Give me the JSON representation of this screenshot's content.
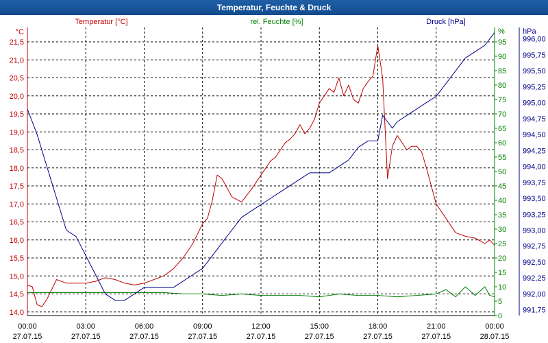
{
  "title": "Temperatur, Feuchte & Druck",
  "colors": {
    "temperature": "#c00000",
    "humidity": "#008000",
    "pressure": "#00008b",
    "grid": "#000000",
    "background": "#ffffff"
  },
  "chart_data": {
    "type": "line",
    "title": "Temperatur, Feuchte & Druck",
    "xlabel": "",
    "x_ticks": [
      {
        "time": "00:00",
        "date": "27.07.15"
      },
      {
        "time": "03:00",
        "date": "27.07.15"
      },
      {
        "time": "06:00",
        "date": "27.07.15"
      },
      {
        "time": "09:00",
        "date": "27.07.15"
      },
      {
        "time": "12:00",
        "date": "27.07.15"
      },
      {
        "time": "15:00",
        "date": "27.07.15"
      },
      {
        "time": "18:00",
        "date": "27.07.15"
      },
      {
        "time": "21:00",
        "date": "27.07.15"
      },
      {
        "time": "00:00",
        "date": "28.07.15"
      }
    ],
    "xlim": [
      0,
      24
    ],
    "axes": {
      "temperature": {
        "label": "Temperatur [°C]",
        "unit": "°C",
        "min": 13.9,
        "max": 21.9,
        "ticks": [
          "14,0",
          "14,5",
          "15,0",
          "15,5",
          "16,0",
          "16,5",
          "17,0",
          "17,5",
          "18,0",
          "18,5",
          "19,0",
          "19,5",
          "20,0",
          "20,5",
          "21,0",
          "21,5"
        ]
      },
      "humidity": {
        "label": "rel. Feuchte [%]",
        "unit": "%",
        "min": 0,
        "max": 100,
        "ticks": [
          "0",
          "5",
          "10",
          "15",
          "20",
          "25",
          "30",
          "35",
          "40",
          "45",
          "50",
          "55",
          "60",
          "65",
          "70",
          "75",
          "80",
          "85",
          "90",
          "95"
        ]
      },
      "pressure": {
        "label": "Druck [hPa]",
        "unit": "hPa",
        "min": 991.66,
        "max": 996.18,
        "ticks": [
          "991,75",
          "992,00",
          "992,25",
          "992,50",
          "992,75",
          "993,00",
          "993,25",
          "993,50",
          "993,75",
          "994,00",
          "994,25",
          "994,50",
          "994,75",
          "995,00",
          "995,25",
          "995,50",
          "995,75",
          "996,00"
        ]
      }
    },
    "series": [
      {
        "name": "Temperatur",
        "axis": "temperature",
        "x": [
          0,
          0.25,
          0.5,
          0.75,
          1,
          1.5,
          2,
          2.5,
          3,
          3.5,
          4,
          4.5,
          5,
          5.5,
          6,
          6.5,
          7,
          7.5,
          8,
          8.5,
          9,
          9.25,
          9.5,
          9.75,
          10,
          10.5,
          11,
          11.5,
          12,
          12.25,
          12.5,
          12.75,
          13,
          13.25,
          13.5,
          13.75,
          14,
          14.25,
          14.5,
          14.75,
          15,
          15.25,
          15.5,
          15.75,
          16,
          16.25,
          16.5,
          16.75,
          17,
          17.25,
          17.5,
          17.75,
          18,
          18.25,
          18.5,
          18.75,
          19,
          19.25,
          19.5,
          19.75,
          20,
          20.25,
          20.5,
          20.75,
          21,
          21.5,
          22,
          22.5,
          23,
          23.5,
          23.75,
          24
        ],
        "values": [
          14.75,
          14.7,
          14.2,
          14.15,
          14.35,
          14.9,
          14.8,
          14.8,
          14.8,
          14.85,
          14.95,
          14.9,
          14.8,
          14.75,
          14.8,
          14.9,
          15.0,
          15.2,
          15.5,
          15.9,
          16.45,
          16.6,
          17.1,
          17.8,
          17.7,
          17.2,
          17.05,
          17.4,
          17.8,
          18.0,
          18.2,
          18.3,
          18.5,
          18.7,
          18.8,
          18.95,
          19.2,
          18.95,
          19.1,
          19.35,
          19.8,
          20.0,
          20.2,
          20.1,
          20.5,
          20.0,
          20.3,
          19.9,
          19.8,
          20.2,
          20.4,
          20.55,
          21.4,
          20.5,
          17.7,
          18.6,
          18.9,
          18.7,
          18.5,
          18.6,
          18.6,
          18.45,
          18.0,
          17.5,
          17.0,
          16.6,
          16.2,
          16.1,
          16.05,
          15.9,
          16.0,
          15.85
        ]
      },
      {
        "name": "rel. Feuchte",
        "axis": "humidity",
        "x": [
          0,
          1,
          2,
          3,
          4,
          5,
          6,
          7,
          8,
          9,
          10,
          11,
          12,
          13,
          14,
          15,
          16,
          17,
          18,
          19,
          20,
          21,
          21.5,
          22,
          22.5,
          23,
          23.5,
          23.75,
          24
        ],
        "values": [
          8,
          8,
          8,
          8,
          8,
          8,
          8,
          8,
          7.5,
          7.5,
          7,
          7.5,
          7,
          7,
          7,
          6.5,
          7.5,
          7,
          7,
          6.5,
          7,
          7.5,
          9,
          6.5,
          10,
          7,
          10,
          7,
          6.5
        ]
      },
      {
        "name": "Druck",
        "axis": "pressure",
        "x": [
          0,
          0.5,
          1,
          1.5,
          2,
          2.5,
          3,
          3.5,
          4,
          4.5,
          5,
          5.5,
          6,
          6.5,
          7,
          7.5,
          8,
          8.5,
          9,
          9.5,
          10,
          10.5,
          11,
          11.5,
          12,
          12.5,
          13,
          13.5,
          14,
          14.5,
          15,
          15.5,
          16,
          16.5,
          17,
          17.5,
          18,
          18.25,
          18.5,
          18.75,
          19,
          19.5,
          20,
          20.5,
          21,
          21.5,
          22,
          22.5,
          23,
          23.5,
          24
        ],
        "values": [
          994.9,
          994.5,
          994.0,
          993.5,
          993.0,
          992.9,
          992.6,
          992.3,
          992.0,
          991.9,
          991.9,
          992.0,
          992.1,
          992.1,
          992.1,
          992.1,
          992.2,
          992.3,
          992.4,
          992.6,
          992.8,
          993.0,
          993.2,
          993.3,
          993.4,
          993.5,
          993.6,
          993.7,
          993.8,
          993.9,
          993.9,
          993.9,
          994.0,
          994.1,
          994.3,
          994.4,
          994.4,
          994.8,
          994.7,
          994.6,
          994.7,
          994.8,
          994.9,
          995.0,
          995.1,
          995.3,
          995.5,
          995.7,
          995.8,
          995.9,
          996.1
        ]
      }
    ]
  }
}
